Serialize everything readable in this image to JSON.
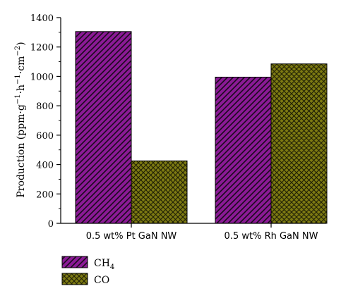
{
  "chart_data": {
    "type": "bar",
    "categories": [
      "0.5 wt% Pt GaN NW",
      "0.5 wt% Rh GaN NW"
    ],
    "series": [
      {
        "name": "CH4",
        "values": [
          1305,
          995
        ],
        "color": "#8b1a96",
        "pattern": "diagonal-hatch"
      },
      {
        "name": "CO",
        "values": [
          425,
          1085
        ],
        "color": "#7d7a12",
        "pattern": "cross-hatch"
      }
    ],
    "ylabel": {
      "base": "Production (ppm·g",
      "sup1": "−1",
      "mid1": "·h",
      "sup2": "−1",
      "mid2": "·cm",
      "sup3": "−2",
      "end": ")"
    },
    "ylim": [
      0,
      1400
    ],
    "yticks": [
      0,
      200,
      400,
      600,
      800,
      1000,
      1200,
      1400
    ],
    "legend": [
      {
        "base": "CH",
        "sub": "4"
      },
      {
        "base": "CO",
        "sub": ""
      }
    ],
    "legend_position": "bottom-left",
    "grid": false
  }
}
